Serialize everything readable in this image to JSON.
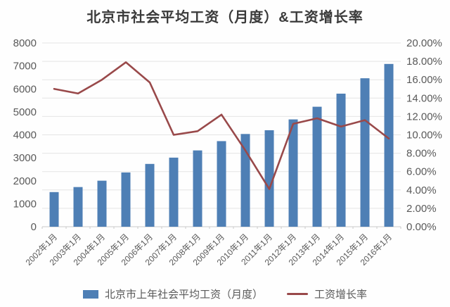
{
  "colors": {
    "bar": "#4e7fb5",
    "line": "#99494a",
    "grid": "#e4e4e4",
    "axis_line": "#c9c9c9",
    "tick_text": "#595959",
    "title_text": "#3a3a3a",
    "background": "#fefefe"
  },
  "chart_data": {
    "type": "bar+line combo",
    "title": "北京市社会平均工资（月度）&工资增长率",
    "categories": [
      "2002年1月",
      "2003年1月",
      "2004年1月",
      "2005年1月",
      "2006年1月",
      "2007年1月",
      "2008年1月",
      "2009年1月",
      "2010年1月",
      "2011年1月",
      "2012年1月",
      "2013年1月",
      "2014年1月",
      "2015年1月",
      "2016年1月"
    ],
    "series": [
      {
        "name": "北京市上年社会平均工资（月度）",
        "type": "bar",
        "axis": "left",
        "values": [
          1508,
          1727,
          2004,
          2362,
          2734,
          3008,
          3322,
          3726,
          4037,
          4201,
          4672,
          5223,
          5793,
          6463,
          7086
        ]
      },
      {
        "name": "工资增长率",
        "type": "line",
        "axis": "right",
        "unit": "%",
        "values": [
          15.0,
          14.5,
          16.0,
          17.9,
          15.7,
          10.0,
          10.4,
          12.2,
          8.3,
          4.1,
          11.2,
          11.8,
          10.9,
          11.6,
          9.6
        ]
      }
    ],
    "left_axis": {
      "min": 0,
      "max": 8000,
      "step": 1000,
      "ticks": [
        "8000",
        "7000",
        "6000",
        "5000",
        "4000",
        "3000",
        "2000",
        "1000",
        "0"
      ]
    },
    "right_axis": {
      "min": 0,
      "max": 20,
      "step": 2,
      "ticks": [
        "20.00%",
        "18.00%",
        "16.00%",
        "14.00%",
        "12.00%",
        "10.00%",
        "8.00%",
        "6.00%",
        "4.00%",
        "2.00%",
        "0.00%"
      ]
    },
    "grid": true,
    "legend_position": "bottom"
  }
}
